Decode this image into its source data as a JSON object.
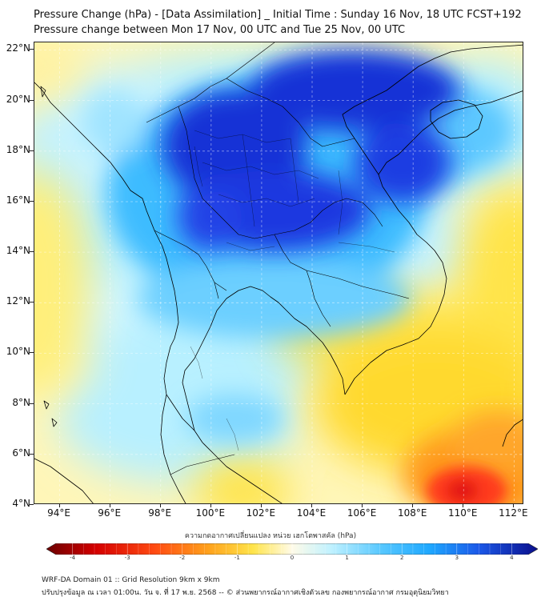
{
  "title": "Pressure Change (hPa) - [Data Assimilation] _ Initial Time : Sunday 16 Nov, 18 UTC FCST+192",
  "subtitle": "Pressure change between Mon 17 Nov, 00 UTC and Tue 25 Nov, 00 UTC",
  "map": {
    "lat_labels": [
      "22°N",
      "20°N",
      "18°N",
      "16°N",
      "14°N",
      "12°N",
      "10°N",
      "8°N",
      "6°N",
      "4°N"
    ],
    "lon_labels": [
      "94°E",
      "96°E",
      "98°E",
      "100°E",
      "102°E",
      "104°E",
      "106°E",
      "108°E",
      "110°E",
      "112°E"
    ],
    "lat_range": [
      4,
      22.3
    ],
    "lon_range": [
      93,
      112.4
    ],
    "colors": {
      "strong_fall": "#8b0000",
      "fall": "#ff3b1f",
      "slight_fall": "#ffe033",
      "neutral": "#fffbe6",
      "slight_rise": "#a9eafd",
      "rise": "#22b4ff",
      "strong_rise": "#1a2fd8"
    }
  },
  "colorbar": {
    "title": "ความกดอากาศเปลี่ยนแปลง หน่วย เฮกโตพาสคัล (hPa)",
    "ticks": [
      "-4",
      "-3",
      "-2",
      "-1",
      "0",
      "1",
      "2",
      "3",
      "4"
    ],
    "range": [
      -4.3,
      4.3
    ]
  },
  "footer": {
    "line1": "WRF-DA Domain 01 :: Grid Resolution 9km x 9km",
    "line2": "ปรับปรุงข้อมูล ณ เวลา 01:00น. วัน จ. ที่ 17 พ.ย. 2568 -- © ส่วนพยากรณ์อากาศเชิงตัวเลข กองพยากรณ์อากาศ กรมอุตุนิยมวิทยา"
  }
}
